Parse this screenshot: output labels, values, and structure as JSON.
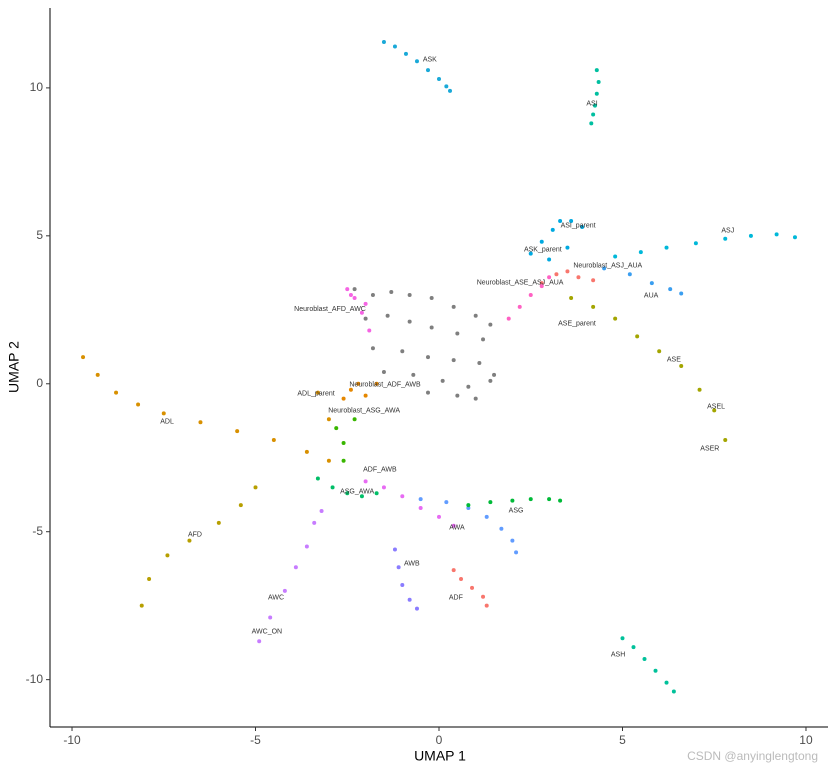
{
  "chart_data": {
    "type": "scatter",
    "xlabel": "UMAP 1",
    "ylabel": "UMAP 2",
    "xlim": [
      -10.6,
      10.6
    ],
    "ylim": [
      -11.6,
      12.7
    ],
    "xticks": [
      -10,
      -5,
      0,
      5,
      10
    ],
    "yticks": [
      -10,
      -5,
      0,
      5,
      10
    ],
    "watermark": "CSDN @anyinglengtong",
    "series": [
      {
        "color": "#1aa9d8",
        "x": [
          -1.5,
          -1.2,
          -0.9,
          -0.6,
          -0.3,
          0,
          0.2,
          0.3
        ],
        "y": [
          11.55,
          11.4,
          11.15,
          10.9,
          10.6,
          10.3,
          10.05,
          9.9
        ]
      },
      {
        "color": "#00bfa0",
        "x": [
          4.3,
          4.35,
          4.3,
          4.25,
          4.2,
          4.15
        ],
        "y": [
          10.6,
          10.2,
          9.8,
          9.4,
          9.1,
          8.8
        ]
      },
      {
        "color": "#00b8d9",
        "x": [
          4.8,
          5.5,
          6.2,
          7.0,
          7.8,
          8.5,
          9.2,
          9.7
        ],
        "y": [
          4.3,
          4.45,
          4.6,
          4.75,
          4.9,
          5.0,
          5.05,
          4.95
        ]
      },
      {
        "color": "#3a9ef0",
        "x": [
          4.5,
          5.2,
          5.8,
          6.3,
          6.6
        ],
        "y": [
          3.9,
          3.7,
          3.4,
          3.2,
          3.05
        ]
      },
      {
        "color": "#00a9e0",
        "x": [
          2.5,
          2.8,
          3.1,
          3.3,
          3.6,
          3.9,
          3.5,
          3.0
        ],
        "y": [
          4.4,
          4.8,
          5.2,
          5.5,
          5.5,
          5.3,
          4.6,
          4.2
        ]
      },
      {
        "color": "#f8766d",
        "x": [
          2.8,
          3.2,
          3.5,
          3.8,
          4.2
        ],
        "y": [
          3.4,
          3.7,
          3.8,
          3.6,
          3.5
        ]
      },
      {
        "color": "#ff61c3",
        "x": [
          1.9,
          2.2,
          2.5,
          2.8,
          3.0
        ],
        "y": [
          2.2,
          2.6,
          3.0,
          3.3,
          3.6
        ]
      },
      {
        "color": "#a3a500",
        "x": [
          3.6,
          4.2,
          4.8,
          5.4,
          6.0,
          6.6,
          7.1,
          7.5,
          7.8
        ],
        "y": [
          2.9,
          2.6,
          2.2,
          1.6,
          1.1,
          0.6,
          -0.2,
          -0.9,
          -1.9
        ]
      },
      {
        "color": "#d89000",
        "x": [
          -9.7,
          -9.3,
          -8.8,
          -8.2,
          -7.5,
          -6.5,
          -5.5,
          -4.5,
          -3.6,
          -3.0,
          -3.0,
          -3.3
        ],
        "y": [
          0.9,
          0.3,
          -0.3,
          -0.7,
          -1.0,
          -1.3,
          -1.6,
          -1.9,
          -2.3,
          -2.6,
          -1.2,
          -0.3
        ]
      },
      {
        "color": "#b79f00",
        "x": [
          -8.1,
          -7.9,
          -7.4,
          -6.8,
          -6.0,
          -5.4,
          -5.0
        ],
        "y": [
          -7.5,
          -6.6,
          -5.8,
          -5.3,
          -4.7,
          -4.1,
          -3.5
        ]
      },
      {
        "color": "#c77cff",
        "x": [
          -4.9,
          -4.6,
          -4.2,
          -3.9,
          -3.6,
          -3.4,
          -3.2
        ],
        "y": [
          -8.7,
          -7.9,
          -7.0,
          -6.2,
          -5.5,
          -4.7,
          -4.3
        ]
      },
      {
        "color": "#8a7cff",
        "x": [
          -1.2,
          -1.1,
          -1.0,
          -0.8,
          -0.6
        ],
        "y": [
          -5.6,
          -6.2,
          -6.8,
          -7.3,
          -7.6
        ]
      },
      {
        "color": "#f8766d",
        "x": [
          0.4,
          0.6,
          0.9,
          1.2,
          1.3
        ],
        "y": [
          -6.3,
          -6.6,
          -6.9,
          -7.2,
          -7.5
        ]
      },
      {
        "color": "#619cff",
        "x": [
          -0.5,
          0.2,
          0.8,
          1.3,
          1.7,
          2.0,
          2.1
        ],
        "y": [
          -3.9,
          -4.0,
          -4.2,
          -4.5,
          -4.9,
          -5.3,
          -5.7
        ]
      },
      {
        "color": "#00ba38",
        "x": [
          0.8,
          1.4,
          2.0,
          2.5,
          3.0,
          3.3
        ],
        "y": [
          -4.1,
          -4.0,
          -3.95,
          -3.9,
          -3.9,
          -3.95
        ]
      },
      {
        "color": "#00c19a",
        "x": [
          5.0,
          5.3,
          5.6,
          5.9,
          6.2,
          6.4
        ],
        "y": [
          -8.6,
          -8.9,
          -9.3,
          -9.7,
          -10.1,
          -10.4
        ]
      },
      {
        "color": "#00be67",
        "x": [
          -3.3,
          -2.9,
          -2.5,
          -2.1,
          -1.7
        ],
        "y": [
          -3.2,
          -3.5,
          -3.7,
          -3.8,
          -3.7
        ]
      },
      {
        "color": "#e76bf3",
        "x": [
          -2.0,
          -1.5,
          -1.0,
          -0.5,
          0.0,
          0.4
        ],
        "y": [
          -3.3,
          -3.5,
          -3.8,
          -4.2,
          -4.5,
          -4.8
        ]
      },
      {
        "color": "#7f7f7f",
        "x": [
          -2.3,
          -1.8,
          -1.3,
          -0.8,
          -0.2,
          0.4,
          1.0,
          1.4,
          -2.0,
          -1.4,
          -0.8,
          -0.2,
          0.5,
          1.2,
          -1.8,
          -1.0,
          -0.3,
          0.4,
          1.1,
          1.5,
          -1.5,
          -0.7,
          0.1,
          0.8,
          1.4,
          -0.3,
          0.5,
          1.0
        ],
        "y": [
          3.2,
          3.0,
          3.1,
          3.0,
          2.9,
          2.6,
          2.3,
          2.0,
          2.2,
          2.3,
          2.1,
          1.9,
          1.7,
          1.5,
          1.2,
          1.1,
          0.9,
          0.8,
          0.7,
          0.3,
          0.4,
          0.3,
          0.1,
          -0.1,
          0.1,
          -0.3,
          -0.4,
          -0.5
        ]
      },
      {
        "color": "#f564e3",
        "x": [
          -2.5,
          -2.3,
          -2.1,
          -1.9,
          -2.0,
          -2.4
        ],
        "y": [
          3.2,
          2.9,
          2.4,
          1.8,
          2.7,
          3.0
        ]
      },
      {
        "color": "#e58700",
        "x": [
          -2.6,
          -2.4,
          -2.2,
          -2.0,
          -1.7
        ],
        "y": [
          -0.5,
          -0.2,
          0.0,
          -0.4,
          0.0
        ]
      },
      {
        "color": "#39b600",
        "x": [
          -2.8,
          -2.6,
          -2.3,
          -2.6
        ],
        "y": [
          -1.5,
          -2.0,
          -1.2,
          -2.6
        ]
      }
    ],
    "annotations": [
      {
        "text": "ASK",
        "x": -0.25,
        "y": 10.95
      },
      {
        "text": "ASI",
        "x": 4.17,
        "y": 9.46
      },
      {
        "text": "ASJ",
        "x": 7.87,
        "y": 5.17
      },
      {
        "text": "ASI_parent",
        "x": 3.79,
        "y": 5.34
      },
      {
        "text": "ASK_parent",
        "x": 2.83,
        "y": 4.53
      },
      {
        "text": "Neuroblast_ASJ_AUA",
        "x": 4.6,
        "y": 3.99
      },
      {
        "text": "Neuroblast_ASE_ASJ_AUA",
        "x": 2.21,
        "y": 3.41
      },
      {
        "text": "AUA",
        "x": 5.78,
        "y": 2.97
      },
      {
        "text": "ASE_parent",
        "x": 3.76,
        "y": 2.03
      },
      {
        "text": "ASE",
        "x": 6.4,
        "y": 0.81
      },
      {
        "text": "ASEL",
        "x": 7.55,
        "y": -0.78
      },
      {
        "text": "ASER",
        "x": 7.38,
        "y": -2.2
      },
      {
        "text": "Neuroblast_AFD_AWC",
        "x": -2.97,
        "y": 2.53
      },
      {
        "text": "Neuroblast_ADF_AWB",
        "x": -1.47,
        "y": -0.03
      },
      {
        "text": "ADL_parent",
        "x": -3.35,
        "y": -0.34
      },
      {
        "text": "Neuroblast_ASG_AWA",
        "x": -2.04,
        "y": -0.91
      },
      {
        "text": "ADL",
        "x": -7.41,
        "y": -1.28
      },
      {
        "text": "ADF_AWB",
        "x": -1.61,
        "y": -2.91
      },
      {
        "text": "ASG_AWA",
        "x": -2.23,
        "y": -3.65
      },
      {
        "text": "ASG",
        "x": 2.1,
        "y": -4.29
      },
      {
        "text": "AWA",
        "x": 0.49,
        "y": -4.86
      },
      {
        "text": "AFD",
        "x": -6.65,
        "y": -5.1
      },
      {
        "text": "AWB",
        "x": -0.74,
        "y": -6.08
      },
      {
        "text": "ADF",
        "x": 0.46,
        "y": -7.23
      },
      {
        "text": "AWC",
        "x": -4.44,
        "y": -7.23
      },
      {
        "text": "AWC_ON",
        "x": -4.69,
        "y": -8.38
      },
      {
        "text": "ASH",
        "x": 4.88,
        "y": -9.16
      }
    ]
  }
}
